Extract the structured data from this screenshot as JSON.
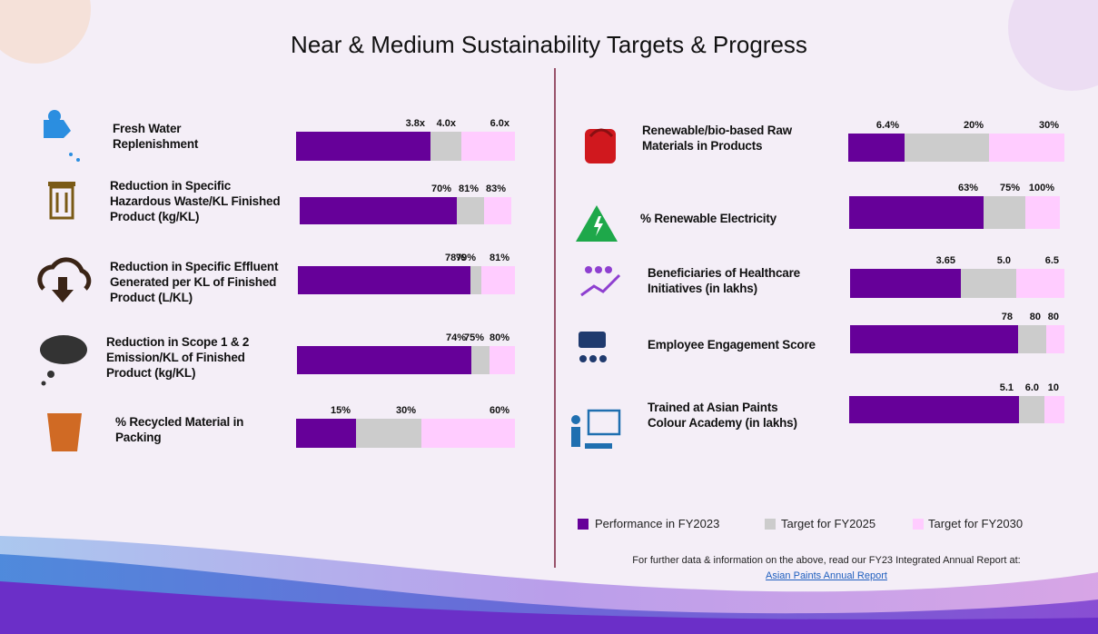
{
  "title": "Near & Medium Sustainability Targets & Progress",
  "metrics": [
    {
      "label": "Fresh Water Replenishment",
      "values": [
        3.8,
        4.0,
        6.0
      ],
      "value_labels": [
        "3.8x",
        "4.0x",
        "6.0x"
      ]
    },
    {
      "label": "Reduction in Specific Hazardous Waste/KL Finished Product (kg/KL)",
      "values": [
        70,
        81,
        83
      ],
      "value_labels": [
        "70%",
        "81%",
        "83%"
      ]
    },
    {
      "label": "Reduction in Specific Effluent Generated per KL of Finished Product (L/KL)",
      "values": [
        78,
        79,
        81
      ],
      "value_labels": [
        "78%",
        "79%",
        "81%"
      ]
    },
    {
      "label": "Reduction in Scope 1 & 2 Emission/KL of Finished Product (kg/KL)",
      "values": [
        74,
        75,
        80
      ],
      "value_labels": [
        "74%",
        "75%",
        "80%"
      ]
    },
    {
      "label": "% Recycled Material in Packing",
      "values": [
        15,
        30,
        60
      ],
      "value_labels": [
        "15%",
        "30%",
        "60%"
      ]
    },
    {
      "label": "Renewable/bio-based Raw Materials in Products",
      "values": [
        6.4,
        20,
        30
      ],
      "value_labels": [
        "6.4%",
        "20%",
        "30%"
      ]
    },
    {
      "label": "% Renewable Electricity",
      "values": [
        63,
        75,
        100
      ],
      "value_labels": [
        "63%",
        "75%",
        "100%"
      ]
    },
    {
      "label": "Beneficiaries of Healthcare Initiatives (in lakhs)",
      "values": [
        3.65,
        5.0,
        6.5
      ],
      "value_labels": [
        "3.65",
        "5.0",
        "6.5"
      ]
    },
    {
      "label": "Employee Engagement Score",
      "values": [
        78,
        80,
        80
      ],
      "value_labels": [
        "78",
        "80",
        "80"
      ]
    },
    {
      "label": "Trained at Asian Paints Colour Academy (in lakhs)",
      "values": [
        5.1,
        6.0,
        10
      ],
      "value_labels": [
        "5.1",
        "6.0",
        "10"
      ]
    }
  ],
  "colors": [
    "#660099",
    "#cccccc",
    "#ffccff"
  ],
  "legend": [
    "Performance in FY2023",
    "Target for FY2025",
    "Target for FY2030"
  ],
  "footer": {
    "note": "For further data & information on the above, read our FY23 Integrated Annual Report at:",
    "link": "Asian Paints Annual Report"
  }
}
